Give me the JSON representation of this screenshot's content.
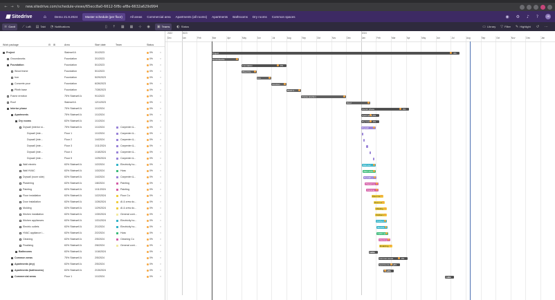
{
  "browser": {
    "url": "new.sitedrive.com/schedule-views/65ecc8a0-6612-5f8c-af8e-6632a629d994",
    "nav_icons": [
      "back-icon",
      "forward-icon",
      "reload-icon"
    ]
  },
  "app": {
    "logo": "Sitedrive",
    "nav_tabs": [
      "Demo 21.8.2024",
      "Master schedule (per floor)",
      "All areas",
      "Commercial area",
      "Apartments (all rooms)",
      "Apartments",
      "Bathrooms",
      "Dry rooms",
      "Common spaces"
    ],
    "active_tab_index": 1,
    "avatar_initials": "JS"
  },
  "toolbar": {
    "gantt": "Gantt",
    "lob": "LoB",
    "takt": "Takt",
    "notifications": "Notifications",
    "teams": "Teams",
    "status": "Status",
    "library": "Library",
    "filter": "Filter",
    "highlight": "Highlight"
  },
  "grid": {
    "headers": {
      "work_package": "Work package",
      "area": "Area",
      "start_date": "Start date",
      "team": "Team",
      "status": "Status"
    },
    "rows": [
      {
        "name": "Project",
        "area": "Stairwell A",
        "start": "3/1/2023",
        "team": "",
        "pct": "0%",
        "level": 0,
        "bold": true
      },
      {
        "name": "Groundworks",
        "area": "Foundation",
        "start": "3/1/2023",
        "team": "",
        "pct": "0%",
        "level": 1,
        "bold": false
      },
      {
        "name": "Foundation",
        "area": "Foundation",
        "start": "5/1/2023",
        "team": "",
        "pct": "0%",
        "level": 1,
        "bold": true
      },
      {
        "name": "Wood frame",
        "area": "Foundation",
        "start": "5/1/2023",
        "team": "",
        "pct": "0%",
        "level": 2,
        "bold": false
      },
      {
        "name": "Iron",
        "area": "Foundation",
        "start": "5/29/2023",
        "team": "",
        "pct": "0%",
        "level": 2,
        "bold": false
      },
      {
        "name": "Concrete pour",
        "area": "Foundation",
        "start": "6/26/2023",
        "team": "",
        "pct": "0%",
        "level": 2,
        "bold": false
      },
      {
        "name": "Plinth base",
        "area": "Foundation",
        "start": "7/28/2023",
        "team": "",
        "pct": "0%",
        "level": 2,
        "bold": false
      },
      {
        "name": "Frame erection",
        "area": "75% Stairwell A",
        "start": "9/1/2023",
        "team": "",
        "pct": "0%",
        "level": 1,
        "bold": false
      },
      {
        "name": "Roof",
        "area": "Stairwell A",
        "start": "12/1/2023",
        "team": "",
        "pct": "0%",
        "level": 1,
        "bold": false
      },
      {
        "name": "Interior phase",
        "area": "75% Stairwell A",
        "start": "1/1/2024",
        "team": "",
        "pct": "0%",
        "level": 1,
        "bold": true
      },
      {
        "name": "Apartments",
        "area": "75% Stairwell A",
        "start": "1/1/2024",
        "team": "",
        "pct": "0%",
        "level": 2,
        "bold": true
      },
      {
        "name": "Dry rooms",
        "area": "63% Stairwell A",
        "start": "1/1/2024",
        "team": "",
        "pct": "0%",
        "level": 3,
        "bold": true
      },
      {
        "name": "Drywall (interior si...",
        "area": "75% Stairwell A",
        "start": "1/1/2024",
        "team": "Carpenter &...",
        "pct": "0%",
        "level": 4,
        "bold": false
      },
      {
        "name": "Drywall (inte...",
        "area": "Floor 1",
        "start": "1/1/2024",
        "team": "Carpenter &...",
        "pct": "0%",
        "level": 5,
        "bold": false
      },
      {
        "name": "Drywall (inte...",
        "area": "Floor 2",
        "start": "1/4/2024",
        "team": "Carpenter &...",
        "pct": "0%",
        "level": 5,
        "bold": false
      },
      {
        "name": "Drywall (inte...",
        "area": "Floor 3",
        "start": "1/11/2024",
        "team": "Carpenter &...",
        "pct": "0%",
        "level": 5,
        "bold": false
      },
      {
        "name": "Drywall (inte...",
        "area": "Floor 4",
        "start": "1/18/2024",
        "team": "Carpenter &...",
        "pct": "0%",
        "level": 5,
        "bold": false
      },
      {
        "name": "Drywall (inte...",
        "area": "Floor 5",
        "start": "1/25/2024",
        "team": "Carpenter &...",
        "pct": "0%",
        "level": 5,
        "bold": false
      },
      {
        "name": "Wall electric",
        "area": "63% Stairwell A",
        "start": "1/2/2024",
        "team": "Electricity ho...",
        "pct": "0%",
        "level": 4,
        "bold": false
      },
      {
        "name": "Wall HVAC",
        "area": "63% Stairwell A",
        "start": "1/3/2024",
        "team": "Hvac",
        "pct": "0%",
        "level": 4,
        "bold": false
      },
      {
        "name": "Drywall (room side)",
        "area": "63% Stairwell A",
        "start": "1/4/2024",
        "team": "Carpenter &...",
        "pct": "0%",
        "level": 4,
        "bold": false
      },
      {
        "name": "Plastering",
        "area": "63% Stairwell A",
        "start": "1/8/2024",
        "team": "Painting",
        "pct": "0%",
        "level": 4,
        "bold": false
      },
      {
        "name": "Painting",
        "area": "63% Stairwell A",
        "start": "1/11/2024",
        "team": "Painting",
        "pct": "0%",
        "level": 4,
        "bold": false
      },
      {
        "name": "Floor installation",
        "area": "63% Stairwell A",
        "start": "1/22/2024",
        "team": "Floor Co",
        "pct": "0%",
        "level": 4,
        "bold": false
      },
      {
        "name": "Door installation",
        "area": "63% Stairwell A",
        "start": "1/26/2024",
        "team": "Al & crew do...",
        "pct": "0%",
        "level": 4,
        "bold": false
      },
      {
        "name": "Molding",
        "area": "63% Stairwell A",
        "start": "1/29/2024",
        "team": "Al & crew do...",
        "pct": "0%",
        "level": 4,
        "bold": false
      },
      {
        "name": "Kitchen installation",
        "area": "63% Stairwell A",
        "start": "1/30/2024",
        "team": "General cont...",
        "pct": "0%",
        "level": 4,
        "bold": false
      },
      {
        "name": "Kitchen appliances",
        "area": "63% Stairwell A",
        "start": "1/31/2024",
        "team": "Electricity ho...",
        "pct": "0%",
        "level": 4,
        "bold": false
      },
      {
        "name": "Electric outlets",
        "area": "63% Stairwell A",
        "start": "2/1/2024",
        "team": "Electricity ho...",
        "pct": "0%",
        "level": 4,
        "bold": false
      },
      {
        "name": "HVAC appliance i...",
        "area": "63% Stairwell A",
        "start": "2/2/2024",
        "team": "Hvac",
        "pct": "0%",
        "level": 4,
        "bold": false
      },
      {
        "name": "Cleaning",
        "area": "63% Stairwell A",
        "start": "2/5/2024",
        "team": "Cleaning Co",
        "pct": "0%",
        "level": 4,
        "bold": false
      },
      {
        "name": "Finalizing",
        "area": "63% Stairwell A",
        "start": "2/6/2024",
        "team": "General cont...",
        "pct": "0%",
        "level": 4,
        "bold": false
      },
      {
        "name": "Bathrooms",
        "area": "63% Stairwell A",
        "start": "1/16/2024",
        "team": "",
        "pct": "0%",
        "level": 3,
        "bold": true
      },
      {
        "name": "Common areas",
        "area": "75% Stairwell A",
        "start": "2/5/2024",
        "team": "",
        "pct": "0%",
        "level": 2,
        "bold": true
      },
      {
        "name": "Apartments (dry)",
        "area": "63% Stairwell A",
        "start": "2/5/2024",
        "team": "",
        "pct": "0%",
        "level": 2,
        "bold": true
      },
      {
        "name": "Apartments (bathrooms)",
        "area": "63% Stairwell A",
        "start": "2/15/2024",
        "team": "",
        "pct": "0%",
        "level": 2,
        "bold": true
      },
      {
        "name": "Commercial areas",
        "area": "Floor 1",
        "start": "1/1/2024",
        "team": "",
        "pct": "0%",
        "level": 2,
        "bold": true
      }
    ]
  },
  "timeline": {
    "years": [
      "2022",
      "2023",
      "2024"
    ],
    "months": [
      "Dec",
      "Jan",
      "Feb",
      "Mar",
      "Apr",
      "May",
      "Jun",
      "Jul",
      "Aug",
      "Sep",
      "Oct",
      "Nov",
      "Dec",
      "Jan",
      "Feb",
      "Mar",
      "Apr",
      "May",
      "Jun",
      "Jul",
      "Aug",
      "Sep",
      "Oct",
      "Nov",
      "Dec",
      "Jan"
    ],
    "bars": [
      {
        "row": 0,
        "label": "Project",
        "start_month": 3,
        "end_month": 19.6,
        "color": "#505050",
        "pct": "0%"
      },
      {
        "row": 1,
        "label": "Groundworks",
        "start_month": 3,
        "end_month": 4.8,
        "color": "#606060",
        "pct": ""
      },
      {
        "row": 2,
        "label": "Foundation",
        "start_month": 5,
        "end_month": 8,
        "color": "#505050",
        "pct": "0%"
      },
      {
        "row": 3,
        "label": "Wood fra...",
        "start_month": 5,
        "end_month": 6,
        "color": "#606060",
        "pct": ""
      },
      {
        "row": 4,
        "label": "Iron",
        "start_month": 6,
        "end_month": 7,
        "color": "#606060",
        "pct": ""
      },
      {
        "row": 5,
        "label": "Concret...",
        "start_month": 7,
        "end_month": 8,
        "color": "#606060",
        "pct": ""
      },
      {
        "row": 6,
        "label": "Plinth b...",
        "start_month": 8,
        "end_month": 9,
        "color": "#606060",
        "pct": ""
      },
      {
        "row": 7,
        "label": "Frame erection",
        "start_month": 9,
        "end_month": 12,
        "color": "#606060",
        "pct": ""
      },
      {
        "row": 8,
        "label": "Roof",
        "start_month": 12,
        "end_month": 13.6,
        "color": "#606060",
        "pct": ""
      },
      {
        "row": 9,
        "label": "Interior phase",
        "start_month": 13,
        "end_month": 16.2,
        "color": "#505050",
        "pct": "0%"
      },
      {
        "row": 10,
        "label": "Apartments",
        "start_month": 13,
        "end_month": 14.2,
        "color": "#505050",
        "pct": "0%"
      },
      {
        "row": 11,
        "label": "Dry rooms",
        "start_month": 13,
        "end_month": 14.2,
        "color": "#505050",
        "pct": "0%"
      },
      {
        "row": 12,
        "label": "Drywall",
        "start_month": 13,
        "end_month": 14,
        "color": "#9a83d8",
        "pct": ""
      },
      {
        "row": 13,
        "label": "",
        "start_month": 13.05,
        "end_month": 13.15,
        "color": "#9a83d8",
        "pct": ""
      },
      {
        "row": 14,
        "label": "",
        "start_month": 13.15,
        "end_month": 13.25,
        "color": "#9a83d8",
        "pct": ""
      },
      {
        "row": 15,
        "label": "",
        "start_month": 13.35,
        "end_month": 13.45,
        "color": "#9a83d8",
        "pct": ""
      },
      {
        "row": 16,
        "label": "",
        "start_month": 13.55,
        "end_month": 13.65,
        "color": "#9a83d8",
        "pct": ""
      },
      {
        "row": 17,
        "label": "",
        "start_month": 13.8,
        "end_month": 13.9,
        "color": "#9a83d8",
        "pct": ""
      },
      {
        "row": 18,
        "label": "Wall elec...",
        "start_month": 13.05,
        "end_month": 14,
        "color": "#33b3c8",
        "pct": ""
      },
      {
        "row": 19,
        "label": "Wall HVAC",
        "start_month": 13.1,
        "end_month": 14,
        "color": "#3dbb7a",
        "pct": ""
      },
      {
        "row": 20,
        "label": "Drywall (...",
        "start_month": 13.15,
        "end_month": 14.05,
        "color": "#9a83d8",
        "pct": ""
      },
      {
        "row": 21,
        "label": "Plastering",
        "start_month": 13.25,
        "end_month": 14.15,
        "color": "#d45ca6",
        "pct": ""
      },
      {
        "row": 22,
        "label": "Painting",
        "start_month": 13.35,
        "end_month": 14.15,
        "color": "#d45ca6",
        "pct": ""
      },
      {
        "row": 23,
        "label": "Floor ins...",
        "start_month": 13.7,
        "end_month": 14.5,
        "color": "#f0cd3e",
        "pct": ""
      },
      {
        "row": 24,
        "label": "Door ins...",
        "start_month": 13.85,
        "end_month": 14.6,
        "color": "#f0cd3e",
        "pct": ""
      },
      {
        "row": 25,
        "label": "Molding",
        "start_month": 13.95,
        "end_month": 14.7,
        "color": "#f0cd3e",
        "pct": ""
      },
      {
        "row": 26,
        "label": "Kitchen i...",
        "start_month": 13.95,
        "end_month": 14.7,
        "color": "#f0cd3e",
        "pct": ""
      },
      {
        "row": 27,
        "label": "Kitchen...",
        "start_month": 14,
        "end_month": 14.7,
        "color": "#33b3c8",
        "pct": ""
      },
      {
        "row": 28,
        "label": "Electric o...",
        "start_month": 14.05,
        "end_month": 14.75,
        "color": "#33b3c8",
        "pct": ""
      },
      {
        "row": 29,
        "label": "HVAC ap...",
        "start_month": 14.05,
        "end_month": 14.8,
        "color": "#3dbb7a",
        "pct": ""
      },
      {
        "row": 30,
        "label": "Cleaning",
        "start_month": 14.15,
        "end_month": 14.95,
        "color": "#d45ca6",
        "pct": ""
      },
      {
        "row": 31,
        "label": "Finalizing",
        "start_month": 14.2,
        "end_month": 15.1,
        "color": "#f0cd3e",
        "pct": ""
      },
      {
        "row": 32,
        "label": "Bathro...",
        "start_month": 13.5,
        "end_month": 14.1,
        "color": "#505050",
        "pct": "0%"
      },
      {
        "row": 33,
        "label": "Common areas",
        "start_month": 14.15,
        "end_month": 16.1,
        "color": "#505050",
        "pct": "0%"
      },
      {
        "row": 34,
        "label": "Apartments (dry)",
        "start_month": 14.15,
        "end_month": 15.6,
        "color": "#505050",
        "pct": "0%"
      },
      {
        "row": 35,
        "label": "Apartme...",
        "start_month": 14.5,
        "end_month": 15.2,
        "color": "#505050",
        "pct": "0%"
      },
      {
        "row": 36,
        "label": "Comm...",
        "start_month": 18.6,
        "end_month": 19.2,
        "color": "#505050",
        "pct": "0%"
      }
    ]
  },
  "team_colors": {
    "Carpenter &...": "#9a83d8",
    "Electricity ho...": "#33b3c8",
    "Hvac": "#3dbb7a",
    "Painting": "#d45ca6",
    "Floor Co": "#f0cd3e",
    "Al & crew do...": "#f0cd3e",
    "General cont...": "#f3e9a0",
    "Cleaning Co": "#d45ca6"
  }
}
